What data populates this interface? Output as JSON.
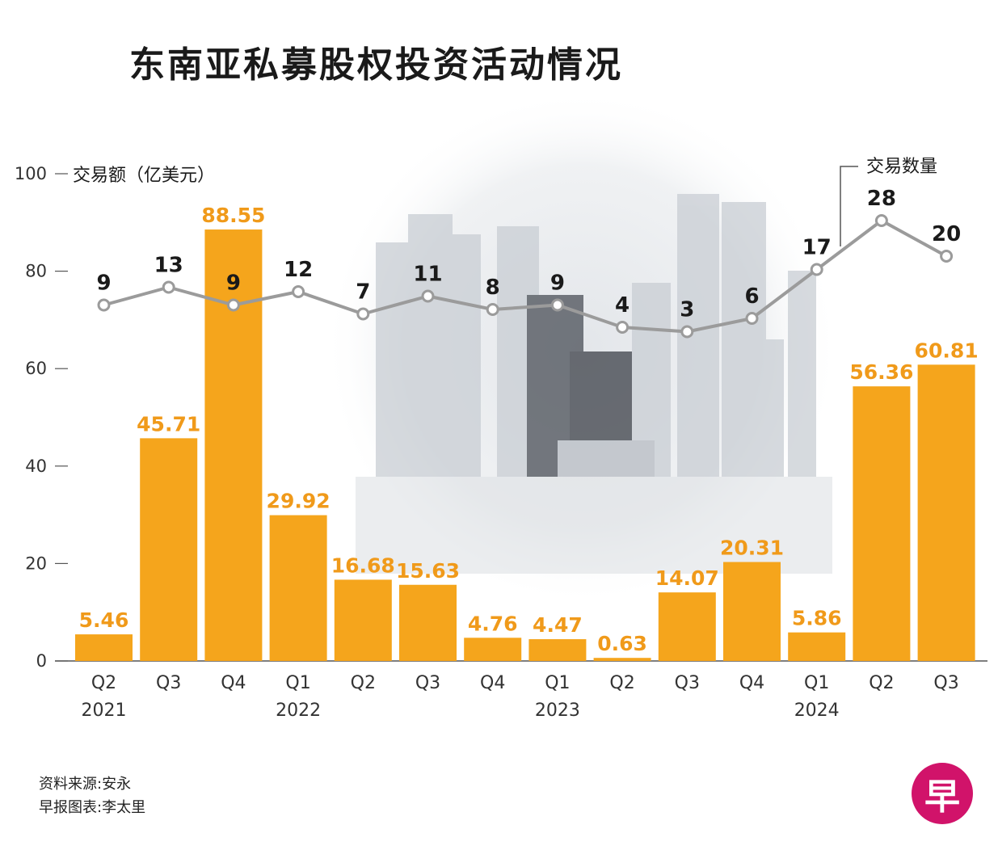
{
  "title": "东南亚私募股权投资活动情况",
  "source": "资料来源:安永",
  "credit": "早报图表:李太里",
  "logo_text": "早",
  "colors": {
    "bar": "#f5a51c",
    "bar_label": "#f09a1a",
    "line": "#9b9b9b",
    "text": "#1a1a1a"
  },
  "chart_data": {
    "type": "bar",
    "categories": [
      "Q2 2021",
      "Q3 2021",
      "Q4 2021",
      "Q1 2022",
      "Q2 2022",
      "Q3 2022",
      "Q4 2022",
      "Q1 2023",
      "Q2 2023",
      "Q3 2023",
      "Q4 2023",
      "Q1 2024",
      "Q2 2024",
      "Q3 2024"
    ],
    "tick_labels": [
      {
        "quarter": "Q2",
        "year": "2021"
      },
      {
        "quarter": "Q3",
        "year": ""
      },
      {
        "quarter": "Q4",
        "year": ""
      },
      {
        "quarter": "Q1",
        "year": "2022"
      },
      {
        "quarter": "Q2",
        "year": ""
      },
      {
        "quarter": "Q3",
        "year": ""
      },
      {
        "quarter": "Q4",
        "year": ""
      },
      {
        "quarter": "Q1",
        "year": "2023"
      },
      {
        "quarter": "Q2",
        "year": ""
      },
      {
        "quarter": "Q3",
        "year": ""
      },
      {
        "quarter": "Q4",
        "year": ""
      },
      {
        "quarter": "Q1",
        "year": "2024"
      },
      {
        "quarter": "Q2",
        "year": ""
      },
      {
        "quarter": "Q3",
        "year": ""
      }
    ],
    "series": [
      {
        "name": "交易额（亿美元）",
        "type": "bar",
        "values": [
          5.46,
          45.71,
          88.55,
          29.92,
          16.68,
          15.63,
          4.76,
          4.47,
          0.63,
          14.07,
          20.31,
          5.86,
          56.36,
          60.81
        ],
        "labels": [
          "5.46",
          "45.71",
          "88.55",
          "29.92",
          "16.68",
          "15.63",
          "4.76",
          "4.47",
          "0.63",
          "14.07",
          "20.31",
          "5.86",
          "56.36",
          "60.81"
        ]
      },
      {
        "name": "交易数量",
        "type": "line",
        "values": [
          9,
          13,
          9,
          12,
          7,
          11,
          8,
          9,
          4,
          3,
          6,
          17,
          28,
          20
        ]
      }
    ],
    "y_ticks": [
      "0",
      "20",
      "40",
      "60",
      "80",
      "100"
    ],
    "ylim": [
      0,
      100
    ],
    "ylabel": "交易额（亿美元）",
    "line_label": "交易数量",
    "grid": false
  }
}
